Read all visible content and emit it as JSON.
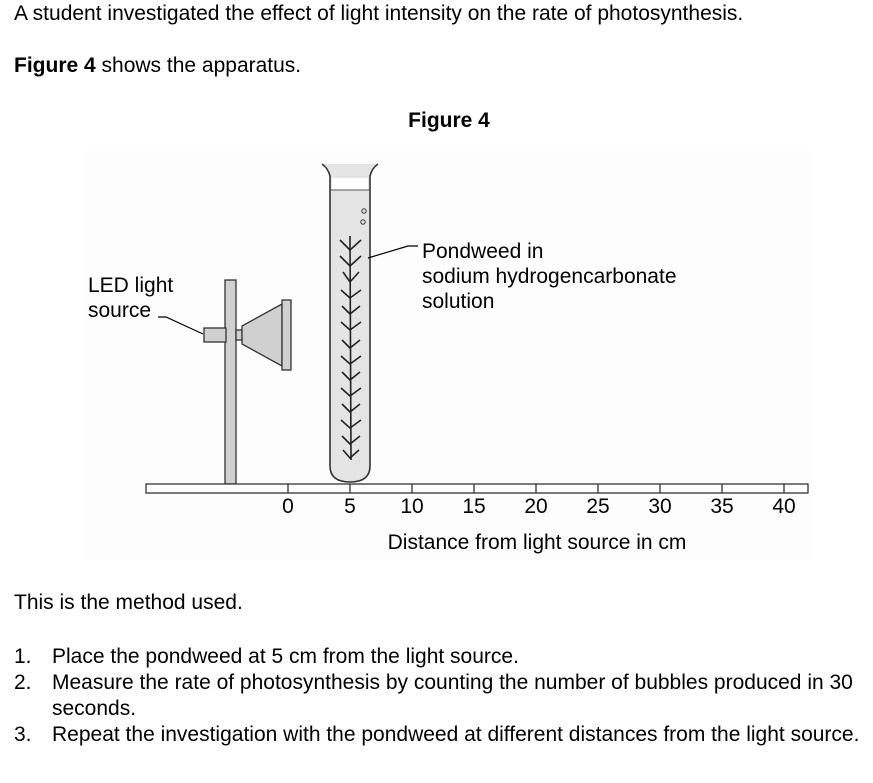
{
  "question": {
    "intro": "A student investigated the effect of light intensity on the rate of photosynthesis.",
    "figure_ref_bold": "Figure 4",
    "figure_ref_rest": " shows the apparatus."
  },
  "figure": {
    "title": "Figure 4",
    "led_label_line1": "LED light",
    "led_label_line2": "source",
    "pondweed_label_line1": "Pondweed in",
    "pondweed_label_line2": "sodium hydrogencarbonate",
    "pondweed_label_line3": "solution",
    "scale_ticks": [
      "0",
      "5",
      "10",
      "15",
      "20",
      "25",
      "30",
      "35",
      "40"
    ],
    "scale_label": "Distance from light source in cm"
  },
  "method": {
    "intro": "This is the method used.",
    "steps": [
      {
        "num": "1.",
        "text": "Place the pondweed at 5 cm from the light source."
      },
      {
        "num": "2.",
        "text": "Measure the rate of photosynthesis by counting the number of bubbles produced in 30 seconds."
      },
      {
        "num": "3.",
        "text": "Repeat the investigation with the pondweed at different distances from the light source."
      }
    ]
  }
}
